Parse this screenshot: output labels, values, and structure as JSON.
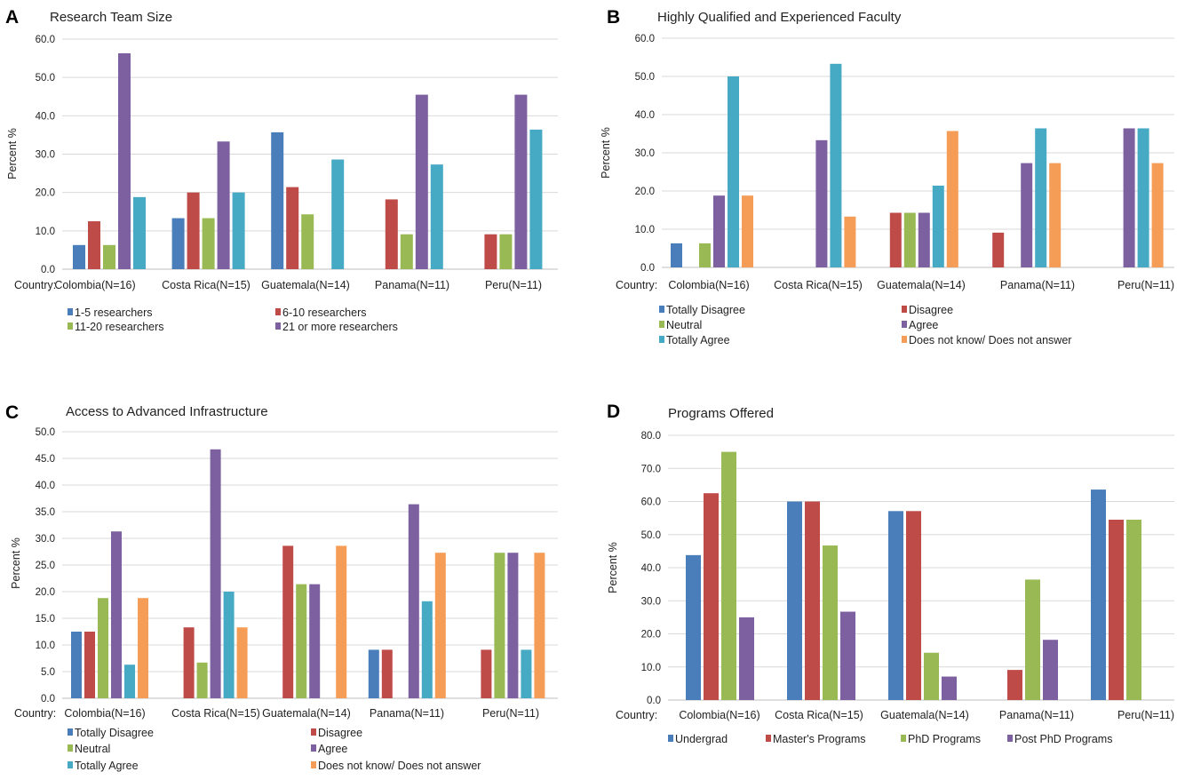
{
  "colors": {
    "blue": "#4a7ebb",
    "red": "#be4b48",
    "green": "#98b954",
    "purple": "#7d60a0",
    "teal": "#46aac5",
    "orange": "#f59d56",
    "grid": "#d9d9d9",
    "axis": "#bfbfbf"
  },
  "chart_data": [
    {
      "panel_letter": "A",
      "type": "bar",
      "title": "Research Team Size",
      "ylabel": "Percent %",
      "xlabel": "Country:",
      "ylim": [
        0,
        60
      ],
      "yticks": [
        "0.0",
        "10.0",
        "20.0",
        "30.0",
        "40.0",
        "50.0",
        "60.0"
      ],
      "categories": [
        "Colombia(N=16)",
        "Costa Rica(N=15)",
        "Guatemala(N=14)",
        "Panama(N=11)",
        "Peru(N=11)"
      ],
      "series": [
        {
          "name": "1-5 researchers",
          "color": "blue",
          "values": [
            6.3,
            13.3,
            35.7,
            0,
            0
          ]
        },
        {
          "name": "6-10 researchers",
          "color": "red",
          "values": [
            12.5,
            20.0,
            21.4,
            18.2,
            9.1
          ]
        },
        {
          "name": "11-20 researchers",
          "color": "green",
          "values": [
            6.3,
            13.3,
            14.3,
            9.1,
            9.1
          ]
        },
        {
          "name": "21 or more researchers",
          "color": "purple",
          "values": [
            56.3,
            33.3,
            0,
            45.5,
            45.5
          ]
        },
        {
          "name": "",
          "color": "teal",
          "values": [
            18.8,
            20.0,
            28.6,
            27.3,
            36.4
          ]
        }
      ],
      "legend": [
        "1-5 researchers",
        "6-10 researchers",
        "11-20 researchers",
        "21 or more researchers"
      ]
    },
    {
      "panel_letter": "B",
      "type": "bar",
      "title": "Highly Qualified and Experienced Faculty",
      "ylabel": "Percent %",
      "xlabel": "Country:",
      "ylim": [
        0,
        60
      ],
      "yticks": [
        "0.0",
        "10.0",
        "20.0",
        "30.0",
        "40.0",
        "50.0",
        "60.0"
      ],
      "categories": [
        "Colombia(N=16)",
        "Costa Rica(N=15)",
        "Guatemala(N=14)",
        "Panama(N=11)",
        "Peru(N=11)"
      ],
      "series": [
        {
          "name": "Totally Disagree",
          "color": "blue",
          "values": [
            6.3,
            0,
            0,
            0,
            0
          ]
        },
        {
          "name": "Disagree",
          "color": "red",
          "values": [
            0,
            0,
            14.3,
            9.1,
            0
          ]
        },
        {
          "name": "Neutral",
          "color": "green",
          "values": [
            6.3,
            0,
            14.3,
            0,
            0
          ]
        },
        {
          "name": "Agree",
          "color": "purple",
          "values": [
            18.8,
            33.3,
            14.3,
            27.3,
            36.4
          ]
        },
        {
          "name": "Totally Agree",
          "color": "teal",
          "values": [
            50.0,
            53.3,
            21.4,
            36.4,
            36.4
          ]
        },
        {
          "name": "Does not know/ Does not answer",
          "color": "orange",
          "values": [
            18.8,
            13.3,
            35.7,
            27.3,
            27.3
          ]
        }
      ],
      "legend": [
        "Totally Disagree",
        "Disagree",
        "Neutral",
        "Agree",
        "Totally Agree",
        "Does not know/ Does not answer"
      ]
    },
    {
      "panel_letter": "C",
      "type": "bar",
      "title": "Access to Advanced Infrastructure",
      "ylabel": "Percent %",
      "xlabel": "Country:",
      "ylim": [
        0,
        50
      ],
      "yticks": [
        "0.0",
        "5.0",
        "10.0",
        "15.0",
        "20.0",
        "25.0",
        "30.0",
        "35.0",
        "40.0",
        "45.0",
        "50.0"
      ],
      "categories": [
        "Colombia(N=16)",
        "Costa Rica(N=15)",
        "Guatemala(N=14)",
        "Panama(N=11)",
        "Peru(N=11)"
      ],
      "series": [
        {
          "name": "Totally Disagree",
          "color": "blue",
          "values": [
            12.5,
            0,
            0,
            9.1,
            0
          ]
        },
        {
          "name": "Disagree",
          "color": "red",
          "values": [
            12.5,
            13.3,
            28.6,
            9.1,
            9.1
          ]
        },
        {
          "name": "Neutral",
          "color": "green",
          "values": [
            18.8,
            6.7,
            21.4,
            0,
            27.3
          ]
        },
        {
          "name": "Agree",
          "color": "purple",
          "values": [
            31.3,
            46.7,
            21.4,
            36.4,
            27.3
          ]
        },
        {
          "name": "Totally Agree",
          "color": "teal",
          "values": [
            6.3,
            20.0,
            0,
            18.2,
            9.1
          ]
        },
        {
          "name": "Does not know/ Does not answer",
          "color": "orange",
          "values": [
            18.8,
            13.3,
            28.6,
            27.3,
            27.3
          ]
        }
      ],
      "legend": [
        "Totally Disagree",
        "Disagree",
        "Neutral",
        "Agree",
        "Totally Agree",
        "Does not know/ Does not answer"
      ]
    },
    {
      "panel_letter": "D",
      "type": "bar",
      "title": "Programs Offered",
      "ylabel": "Percent %",
      "xlabel": "Country:",
      "ylim": [
        0,
        80
      ],
      "yticks": [
        "0.0",
        "10.0",
        "20.0",
        "30.0",
        "40.0",
        "50.0",
        "60.0",
        "70.0",
        "80.0"
      ],
      "categories": [
        "Colombia(N=16)",
        "Costa Rica(N=15)",
        "Guatemala(N=14)",
        "Panama(N=11)",
        "Peru(N=11)"
      ],
      "series": [
        {
          "name": "Undergrad",
          "color": "blue",
          "values": [
            43.8,
            60.0,
            57.1,
            0,
            63.6
          ]
        },
        {
          "name": "Master's Programs",
          "color": "red",
          "values": [
            62.5,
            60.0,
            57.1,
            9.1,
            54.5
          ]
        },
        {
          "name": "PhD Programs",
          "color": "green",
          "values": [
            75.0,
            46.7,
            14.3,
            36.4,
            54.5
          ]
        },
        {
          "name": "Post PhD Programs",
          "color": "purple",
          "values": [
            25.0,
            26.7,
            7.1,
            18.2,
            0
          ]
        }
      ],
      "legend": [
        "Undergrad",
        "Master's Programs",
        "PhD Programs",
        "Post PhD Programs"
      ]
    }
  ]
}
